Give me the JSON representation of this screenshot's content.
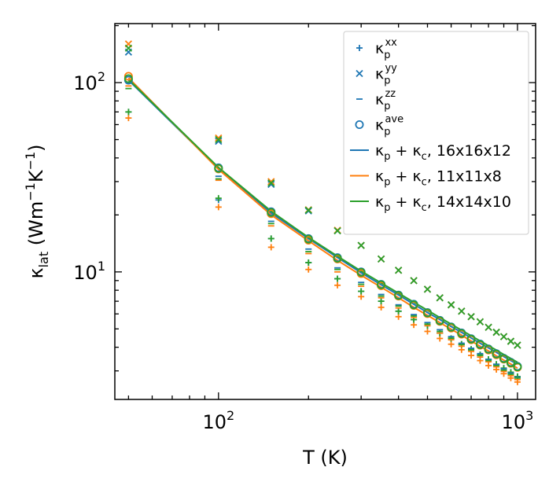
{
  "chart_data": {
    "type": "scatter",
    "title": "",
    "xlabel": "T (K)",
    "ylabel": "κ_lat (Wm⁻¹K⁻¹)",
    "xscale": "log",
    "yscale": "log",
    "xlim": [
      45,
      1150
    ],
    "ylim": [
      2.12,
      205
    ],
    "x_major_ticks": [
      {
        "value": 100,
        "base": "10",
        "exp": "2"
      },
      {
        "value": 1000,
        "base": "10",
        "exp": "3"
      }
    ],
    "y_major_ticks": [
      {
        "value": 10,
        "base": "10",
        "exp": "1"
      },
      {
        "value": 100,
        "base": "10",
        "exp": "2"
      }
    ],
    "x": [
      50,
      100,
      150,
      200,
      250,
      300,
      350,
      400,
      450,
      500,
      550,
      600,
      650,
      700,
      750,
      800,
      850,
      900,
      950,
      1000
    ],
    "colors": {
      "16x16x12": "#1f77b4",
      "11x11x8": "#ff7f0e",
      "14x14x10": "#2ca02c"
    },
    "series": [
      {
        "name": "κp_xx 16x16x12",
        "component": "xx",
        "mesh": "16x16x12",
        "marker": "plus",
        "values": [
          70,
          24,
          15,
          11.2,
          9.2,
          7.9,
          7.0,
          6.2,
          5.6,
          5.2,
          4.75,
          4.45,
          4.15,
          3.9,
          3.65,
          3.45,
          3.25,
          3.1,
          2.95,
          2.8
        ]
      },
      {
        "name": "κp_xx 11x11x8",
        "component": "xx",
        "mesh": "11x11x8",
        "marker": "plus",
        "values": [
          65,
          22,
          13.5,
          10.3,
          8.5,
          7.4,
          6.5,
          5.8,
          5.25,
          4.85,
          4.45,
          4.15,
          3.88,
          3.62,
          3.4,
          3.2,
          3.05,
          2.9,
          2.75,
          2.62
        ]
      },
      {
        "name": "κp_xx 14x14x10",
        "component": "xx",
        "mesh": "14x14x10",
        "marker": "plus",
        "values": [
          70,
          24.5,
          15,
          11.2,
          9.2,
          7.9,
          7.0,
          6.2,
          5.6,
          5.2,
          4.75,
          4.45,
          4.15,
          3.9,
          3.65,
          3.45,
          3.25,
          3.1,
          2.95,
          2.8
        ]
      },
      {
        "name": "κp_yy 16x16x12",
        "component": "yy",
        "mesh": "16x16x12",
        "marker": "x",
        "values": [
          145,
          49,
          29,
          21,
          16.5,
          13.8,
          11.7,
          10.2,
          9.0,
          8.1,
          7.3,
          6.7,
          6.2,
          5.8,
          5.45,
          5.1,
          4.8,
          4.55,
          4.3,
          4.1
        ]
      },
      {
        "name": "κp_yy 11x11x8",
        "component": "yy",
        "mesh": "11x11x8",
        "marker": "x",
        "values": [
          160,
          51,
          30,
          21.3,
          16.6,
          13.8,
          11.7,
          10.2,
          9.0,
          8.1,
          7.3,
          6.7,
          6.2,
          5.8,
          5.45,
          5.1,
          4.8,
          4.55,
          4.3,
          4.1
        ]
      },
      {
        "name": "κp_yy 14x14x10",
        "component": "yy",
        "mesh": "14x14x10",
        "marker": "x",
        "values": [
          152,
          50,
          29.5,
          21.2,
          16.5,
          13.8,
          11.7,
          10.2,
          9.0,
          8.1,
          7.3,
          6.7,
          6.2,
          5.8,
          5.45,
          5.1,
          4.8,
          4.55,
          4.3,
          4.1
        ]
      },
      {
        "name": "κp_zz 16x16x12",
        "component": "zz",
        "mesh": "16x16x12",
        "marker": "dash",
        "values": [
          100,
          32,
          18.5,
          13.2,
          10.5,
          8.8,
          7.6,
          6.7,
          5.95,
          5.4,
          4.95,
          4.55,
          4.2,
          3.95,
          3.7,
          3.45,
          3.25,
          3.08,
          2.92,
          2.78
        ]
      },
      {
        "name": "κp_zz 11x11x8",
        "component": "zz",
        "mesh": "11x11x8",
        "marker": "dash",
        "values": [
          96,
          30.5,
          17.5,
          12.5,
          10.0,
          8.4,
          7.3,
          6.45,
          5.75,
          5.2,
          4.75,
          4.38,
          4.05,
          3.8,
          3.55,
          3.35,
          3.15,
          2.98,
          2.83,
          2.7
        ]
      },
      {
        "name": "κp_zz 14x14x10",
        "component": "zz",
        "mesh": "14x14x10",
        "marker": "dash",
        "values": [
          93,
          31,
          18,
          12.8,
          10.3,
          8.6,
          7.45,
          6.6,
          5.85,
          5.3,
          4.85,
          4.47,
          4.13,
          3.87,
          3.62,
          3.4,
          3.2,
          3.03,
          2.88,
          2.75
        ]
      },
      {
        "name": "κp_ave 16x16x12",
        "component": "ave",
        "mesh": "16x16x12",
        "marker": "circle",
        "values": [
          103,
          35.5,
          20.8,
          15.0,
          11.9,
          10.0,
          8.6,
          7.55,
          6.75,
          6.1,
          5.55,
          5.12,
          4.76,
          4.44,
          4.16,
          3.92,
          3.7,
          3.5,
          3.33,
          3.17
        ]
      },
      {
        "name": "κp_ave 11x11x8",
        "component": "ave",
        "mesh": "11x11x8",
        "marker": "circle",
        "values": [
          108,
          35,
          20.3,
          14.7,
          11.7,
          9.8,
          8.45,
          7.45,
          6.65,
          6.02,
          5.48,
          5.05,
          4.69,
          4.38,
          4.1,
          3.87,
          3.65,
          3.46,
          3.29,
          3.13
        ]
      },
      {
        "name": "κp_ave 14x14x10",
        "component": "ave",
        "mesh": "14x14x10",
        "marker": "circle",
        "values": [
          105,
          35.2,
          20.6,
          14.9,
          11.8,
          9.95,
          8.55,
          7.5,
          6.7,
          6.07,
          5.52,
          5.1,
          4.73,
          4.41,
          4.13,
          3.9,
          3.68,
          3.48,
          3.31,
          3.15
        ]
      },
      {
        "name": "κp + κc, 16x16x12",
        "mesh": "16x16x12",
        "marker": "line",
        "values": [
          103,
          35.2,
          20.5,
          15.0,
          11.9,
          9.9,
          8.55,
          7.55,
          6.75,
          6.1,
          5.6,
          5.15,
          4.8,
          4.48,
          4.2,
          3.97,
          3.76,
          3.57,
          3.4,
          3.25
        ]
      },
      {
        "name": "κp + κc, 11x11x8",
        "mesh": "11x11x8",
        "marker": "line",
        "values": [
          106,
          34.8,
          20.0,
          14.6,
          11.5,
          9.6,
          8.3,
          7.3,
          6.5,
          5.9,
          5.4,
          4.98,
          4.63,
          4.32,
          4.05,
          3.82,
          3.6,
          3.42,
          3.26,
          3.1
        ]
      },
      {
        "name": "κp + κc, 14x14x10",
        "mesh": "14x14x10",
        "marker": "line",
        "values": [
          104,
          35.6,
          20.9,
          15.2,
          12.1,
          10.1,
          8.75,
          7.72,
          6.92,
          6.27,
          5.74,
          5.3,
          4.92,
          4.6,
          4.32,
          4.07,
          3.86,
          3.66,
          3.49,
          3.33
        ]
      }
    ],
    "legend": {
      "placement": "top-right",
      "entries": [
        {
          "key": "xx",
          "marker": "plus",
          "color": "#1f77b4",
          "base": "κ",
          "sub": "p",
          "sup": "xx"
        },
        {
          "key": "yy",
          "marker": "x",
          "color": "#1f77b4",
          "base": "κ",
          "sub": "p",
          "sup": "yy"
        },
        {
          "key": "zz",
          "marker": "dash",
          "color": "#1f77b4",
          "base": "κ",
          "sub": "p",
          "sup": "zz"
        },
        {
          "key": "ave",
          "marker": "circle",
          "color": "#1f77b4",
          "base": "κ",
          "sub": "p",
          "sup": "ave"
        },
        {
          "key": "line-16",
          "marker": "line",
          "color": "#1f77b4",
          "text": "κp + κc, 16x16x12",
          "mesh": "16x16x12"
        },
        {
          "key": "line-11",
          "marker": "line",
          "color": "#ff7f0e",
          "text": "κp + κc, 11x11x8",
          "mesh": "11x11x8"
        },
        {
          "key": "line-14",
          "marker": "line",
          "color": "#2ca02c",
          "text": "κp + κc, 14x14x10",
          "mesh": "14x14x10"
        }
      ]
    }
  }
}
